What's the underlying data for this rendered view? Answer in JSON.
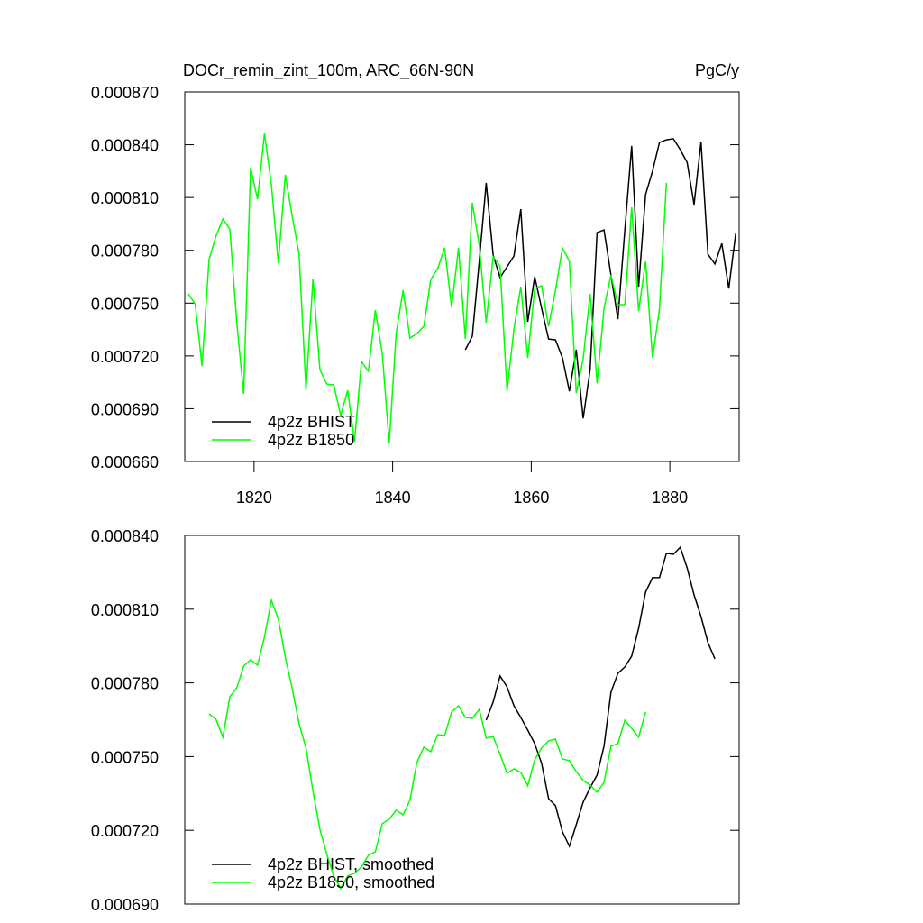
{
  "chart_data": [
    {
      "type": "line",
      "title": "DOCr_remin_zint_100m, ARC_66N-90N",
      "units": "PgC/y",
      "legend": "lower left",
      "x": [
        1810.5,
        1811.5,
        1812.5,
        1813.5,
        1814.5,
        1815.5,
        1816.5,
        1817.5,
        1818.5,
        1819.5,
        1820.5,
        1821.5,
        1822.5,
        1823.5,
        1824.5,
        1825.5,
        1826.5,
        1827.5,
        1828.5,
        1829.5,
        1830.5,
        1831.5,
        1832.5,
        1833.5,
        1834.5,
        1835.5,
        1836.5,
        1837.5,
        1838.5,
        1839.5,
        1840.5,
        1841.5,
        1842.5,
        1843.5,
        1844.5,
        1845.5,
        1846.5,
        1847.5,
        1848.5,
        1849.5,
        1850.5,
        1851.5,
        1852.5,
        1853.5,
        1854.5,
        1855.5,
        1856.5,
        1857.5,
        1858.5,
        1859.5,
        1860.5,
        1861.5,
        1862.5,
        1863.5,
        1864.5,
        1865.5,
        1866.5,
        1867.5,
        1868.5,
        1869.5,
        1870.5,
        1871.5,
        1872.5,
        1873.5,
        1874.5,
        1875.5,
        1876.5,
        1877.5,
        1878.5,
        1879.5,
        1880.5,
        1881.5,
        1882.5,
        1883.5,
        1884.5,
        1885.5,
        1886.5,
        1887.5,
        1888.5,
        1889.5
      ],
      "xlim": [
        1810,
        1890
      ],
      "xticks": [
        1820,
        1840,
        1860,
        1880
      ],
      "ylim": [
        0.00066,
        0.00087
      ],
      "yticks": [
        {
          "value": 0.00066,
          "label": "0.000660"
        },
        {
          "value": 0.00069,
          "label": "0.000690"
        },
        {
          "value": 0.00072,
          "label": "0.000720"
        },
        {
          "value": 0.00075,
          "label": "0.000750"
        },
        {
          "value": 0.00078,
          "label": "0.000780"
        },
        {
          "value": 0.00081,
          "label": "0.000810"
        },
        {
          "value": 0.00084,
          "label": "0.000840"
        },
        {
          "value": 0.00087,
          "label": "0.000870"
        }
      ],
      "series": [
        {
          "name": "4p2z BHIST",
          "color": "#000000",
          "values": [
            null,
            null,
            null,
            null,
            null,
            null,
            null,
            null,
            null,
            null,
            null,
            null,
            null,
            null,
            null,
            null,
            null,
            null,
            null,
            null,
            null,
            null,
            null,
            null,
            null,
            null,
            null,
            null,
            null,
            null,
            null,
            null,
            null,
            null,
            null,
            null,
            null,
            null,
            null,
            null,
            0.0007235,
            0.0007312,
            0.0007737,
            0.0008183,
            0.0007773,
            0.0007645,
            0.0007706,
            0.0007768,
            0.0008034,
            0.0007394,
            0.000765,
            0.000747,
            0.0007296,
            0.0007291,
            0.0007189,
            0.0006999,
            0.0007235,
            0.0006845,
            0.0007122,
            0.0007901,
            0.0007916,
            0.000766,
            0.0007409,
            0.0007916,
            0.0008393,
            0.0007593,
            0.0008116,
            0.0008249,
            0.0008413,
            0.0008428,
            0.0008434,
            0.0008372,
            0.00083,
            0.000806,
            0.0008418,
            0.0007778,
            0.0007722,
            0.0007839,
            0.0007583,
            0.0007896
          ]
        },
        {
          "name": "4p2z B1850",
          "color": "#00ff00",
          "values": [
            0.0007553,
            0.0007496,
            0.0007143,
            0.0007747,
            0.000788,
            0.0007978,
            0.0007921,
            0.0007388,
            0.0006984,
            0.000827,
            0.000809,
            0.0008464,
            0.0008172,
            0.0007727,
            0.0008229,
            0.0007993,
            0.0007778,
            0.0007004,
            0.000764,
            0.0007122,
            0.000704,
            0.0007035,
            0.0006861,
            0.0007004,
            0.0006712,
            0.0007168,
            0.0007112,
            0.000746,
            0.0007214,
            0.0006702,
            0.0007327,
            0.0007573,
            0.0007301,
            0.0007327,
            0.0007368,
            0.0007634,
            0.0007696,
            0.0007814,
            0.0007476,
            0.0007814,
            0.0007296,
            0.000807,
            0.0007829,
            0.0007389,
            0.0007763,
            0.0007711,
            0.0006999,
            0.0007353,
            0.0007593,
            0.0007189,
            0.0007583,
            0.0007599,
            0.0007368,
            0.0007573,
            0.0007814,
            0.0007737,
            0.0006989,
            0.0007184,
            0.0007553,
            0.0007045,
            0.000747,
            0.000766,
            0.0007491,
            0.0007491,
            0.0008044,
            0.0007455,
            0.0007737,
            0.0007189,
            0.0007465,
            0.0008183,
            null,
            null,
            null,
            null,
            null,
            null,
            null,
            null,
            null,
            null
          ]
        }
      ]
    },
    {
      "type": "line",
      "legend": "lower left",
      "x": [
        1810.5,
        1811.5,
        1812.5,
        1813.5,
        1814.5,
        1815.5,
        1816.5,
        1817.5,
        1818.5,
        1819.5,
        1820.5,
        1821.5,
        1822.5,
        1823.5,
        1824.5,
        1825.5,
        1826.5,
        1827.5,
        1828.5,
        1829.5,
        1830.5,
        1831.5,
        1832.5,
        1833.5,
        1834.5,
        1835.5,
        1836.5,
        1837.5,
        1838.5,
        1839.5,
        1840.5,
        1841.5,
        1842.5,
        1843.5,
        1844.5,
        1845.5,
        1846.5,
        1847.5,
        1848.5,
        1849.5,
        1850.5,
        1851.5,
        1852.5,
        1853.5,
        1854.5,
        1855.5,
        1856.5,
        1857.5,
        1858.5,
        1859.5,
        1860.5,
        1861.5,
        1862.5,
        1863.5,
        1864.5,
        1865.5,
        1866.5,
        1867.5,
        1868.5,
        1869.5,
        1870.5,
        1871.5,
        1872.5,
        1873.5,
        1874.5,
        1875.5,
        1876.5,
        1877.5,
        1878.5,
        1879.5,
        1880.5,
        1881.5,
        1882.5,
        1883.5,
        1884.5,
        1885.5,
        1886.5,
        1887.5,
        1888.5,
        1889.5
      ],
      "xlim": [
        1810,
        1890
      ],
      "ylim": [
        0.00069,
        0.00084
      ],
      "yticks": [
        {
          "value": 0.00069,
          "label": "0.000690"
        },
        {
          "value": 0.00072,
          "label": "0.000720"
        },
        {
          "value": 0.00075,
          "label": "0.000750"
        },
        {
          "value": 0.00078,
          "label": "0.000780"
        },
        {
          "value": 0.00081,
          "label": "0.000810"
        },
        {
          "value": 0.00084,
          "label": "0.000840"
        }
      ],
      "series": [
        {
          "name": "4p2z BHIST, smoothed",
          "color": "#000000",
          "values": [
            null,
            null,
            null,
            null,
            null,
            null,
            null,
            null,
            null,
            null,
            null,
            null,
            null,
            null,
            null,
            null,
            null,
            null,
            null,
            null,
            null,
            null,
            null,
            null,
            null,
            null,
            null,
            null,
            null,
            null,
            null,
            null,
            null,
            null,
            null,
            null,
            null,
            null,
            null,
            null,
            null,
            null,
            null,
            0.0007648,
            0.0007722,
            0.0007828,
            0.0007784,
            0.0007707,
            0.0007659,
            0.0007608,
            0.0007553,
            0.0007472,
            0.0007329,
            0.00073,
            0.0007194,
            0.0007135,
            0.0007223,
            0.0007315,
            0.0007373,
            0.0007425,
            0.0007542,
            0.0007762,
            0.0007839,
            0.0007865,
            0.0007909,
            0.0008022,
            0.0008169,
            0.0008228,
            0.0008228,
            0.0008327,
            0.0008323,
            0.0008352,
            0.0008268,
            0.0008158,
            0.000807,
            0.0007964,
            0.0007898,
            null,
            null,
            null
          ]
        },
        {
          "name": "4p2z B1850, smoothed",
          "color": "#00ff00",
          "values": [
            null,
            null,
            null,
            0.0007674,
            0.0007652,
            0.0007579,
            0.0007744,
            0.000778,
            0.0007868,
            0.0007894,
            0.0007872,
            0.0007986,
            0.0008136,
            0.0008059,
            0.0007905,
            0.0007777,
            0.0007634,
            0.0007535,
            0.0007359,
            0.0007205,
            0.0007102,
            0.0007014,
            0.0006963,
            0.0007014,
            0.0007025,
            0.0007051,
            0.0007098,
            0.0007113,
            0.0007227,
            0.0007245,
            0.0007282,
            0.0007263,
            0.0007322,
            0.0007476,
            0.0007538,
            0.000752,
            0.000759,
            0.0007586,
            0.0007681,
            0.0007707,
            0.0007659,
            0.0007656,
            0.0007692,
            0.0007575,
            0.0007582,
            0.0007509,
            0.0007432,
            0.000745,
            0.0007436,
            0.0007381,
            0.0007487,
            0.0007535,
            0.0007564,
            0.0007571,
            0.0007491,
            0.0007483,
            0.0007439,
            0.0007403,
            0.0007384,
            0.0007355,
            0.0007395,
            0.0007542,
            0.0007553,
            0.0007648,
            0.0007615,
            0.0007579,
            0.0007681,
            null,
            null,
            null,
            null,
            null,
            null,
            null,
            null,
            null,
            null,
            null,
            null,
            null
          ]
        }
      ]
    }
  ]
}
